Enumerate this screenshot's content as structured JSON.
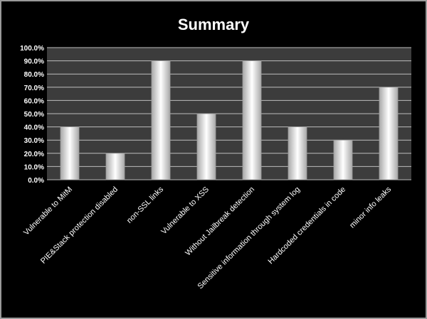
{
  "chart_data": {
    "type": "bar",
    "title": "Summary",
    "xlabel": "",
    "ylabel": "",
    "ylim": [
      0,
      1.0
    ],
    "y_ticks": [
      "0.0%",
      "10.0%",
      "20.0%",
      "30.0%",
      "40.0%",
      "50.0%",
      "60.0%",
      "70.0%",
      "80.0%",
      "90.0%",
      "100.0%"
    ],
    "categories": [
      "Vulnerable to MitM",
      "PIE&Stack protection disabled",
      "non-SSL links",
      "Vulnerable to XSS",
      "Without Jailbreak detection",
      "Sensitive information  through system log",
      "Hardcoded credentials in code",
      "minor info leaks"
    ],
    "values": [
      0.4,
      0.2,
      0.9,
      0.5,
      0.9,
      0.4,
      0.3,
      0.7
    ],
    "grid": true,
    "colors": {
      "background": "#000000",
      "plot_area": "#3c3c3c",
      "gridline": "#bdbdbd",
      "bar_edge": "#9e9e9e",
      "bar_light": "#ffffff",
      "bar_dark": "#a8a8a8",
      "text": "#ffffff"
    }
  }
}
